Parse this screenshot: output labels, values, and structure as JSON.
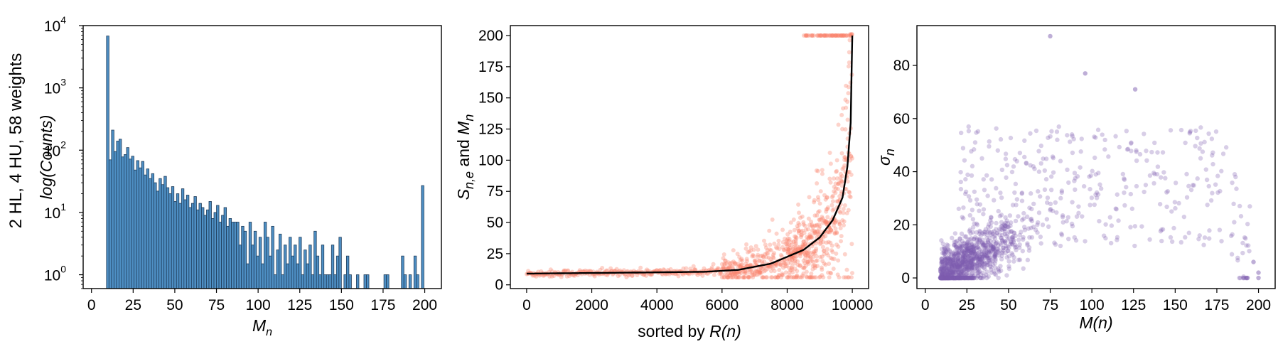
{
  "row_label": "2 HL, 4 HU, 58 weights",
  "colors": {
    "hist_fill": "#4e8fc4",
    "hist_edge": "#1f3c5a",
    "mid_scatter": "#fa8069",
    "mid_line": "#000000",
    "right_scatter": "#7e5db0"
  },
  "chart_data": [
    {
      "type": "bar",
      "title": "",
      "xlabel_base": "M",
      "xlabel_sub": "n",
      "ylabel_main": "log(",
      "ylabel_italic": "Counts",
      "ylabel_end": ")",
      "yscale": "log",
      "xlim": [
        -5,
        210
      ],
      "ylim": [
        0.6,
        10000
      ],
      "xticks": [
        "0",
        "25",
        "50",
        "75",
        "100",
        "125",
        "150",
        "175",
        "200"
      ],
      "yticks": [
        {
          "base": "10",
          "exp": "0",
          "v": 1
        },
        {
          "base": "10",
          "exp": "1",
          "v": 10
        },
        {
          "base": "10",
          "exp": "2",
          "v": 100
        },
        {
          "base": "10",
          "exp": "3",
          "v": 1000
        },
        {
          "base": "10",
          "exp": "4",
          "v": 10000
        }
      ],
      "bin_start": 9,
      "bin_width": 1.5,
      "counts": [
        6800,
        70,
        210,
        95,
        140,
        150,
        78,
        85,
        110,
        72,
        80,
        48,
        68,
        52,
        66,
        40,
        50,
        35,
        42,
        30,
        22,
        35,
        28,
        38,
        25,
        20,
        26,
        15,
        20,
        14,
        24,
        16,
        19,
        12,
        14,
        18,
        11,
        14,
        12,
        9,
        11,
        15,
        8,
        10,
        13,
        7,
        9,
        12,
        6,
        8,
        7,
        7,
        7,
        3,
        6,
        5,
        1.5,
        7,
        3,
        5,
        2,
        4,
        1.5,
        7,
        4,
        2,
        6,
        1,
        2.5,
        4.5,
        1,
        3,
        1.5,
        4,
        2,
        3,
        1.5,
        4,
        1,
        2.5,
        1.5,
        3,
        1,
        5,
        2,
        1,
        3,
        1,
        1,
        1,
        3,
        1,
        2,
        4,
        0,
        1,
        2,
        1,
        0,
        0,
        1,
        0,
        0,
        1,
        1,
        0,
        0,
        0,
        0,
        0,
        0,
        1,
        1,
        0,
        0,
        0,
        0,
        0,
        2,
        1,
        0,
        1,
        0,
        2,
        1,
        0,
        27
      ]
    },
    {
      "type": "scatter",
      "title": "",
      "xlabel_main": "sorted by ",
      "xlabel_italic": "R(n)",
      "ylabel_a": "S",
      "ylabel_a_sub": "n,e",
      "ylabel_mid": " and ",
      "ylabel_b": "M",
      "ylabel_b_sub": "n",
      "xlim": [
        -500,
        10500
      ],
      "ylim": [
        -3,
        208
      ],
      "xticks": [
        "0",
        "2000",
        "4000",
        "6000",
        "8000",
        "10000"
      ],
      "yticks": [
        "0",
        "25",
        "50",
        "75",
        "100",
        "125",
        "150",
        "175",
        "200"
      ],
      "line_curve": [
        [
          0,
          9
        ],
        [
          2000,
          9.5
        ],
        [
          4000,
          10
        ],
        [
          5500,
          10.5
        ],
        [
          6500,
          12
        ],
        [
          7500,
          17
        ],
        [
          8500,
          28
        ],
        [
          9000,
          38
        ],
        [
          9400,
          52
        ],
        [
          9700,
          70
        ],
        [
          9850,
          95
        ],
        [
          9950,
          130
        ],
        [
          10000,
          200
        ]
      ]
    },
    {
      "type": "scatter",
      "title": "",
      "xlabel": "M(n)",
      "ylabel_base": "σ",
      "ylabel_sub": "n",
      "xlim": [
        -5,
        210
      ],
      "ylim": [
        -4,
        95
      ],
      "xticks": [
        "0",
        "25",
        "50",
        "75",
        "100",
        "125",
        "150",
        "175",
        "200"
      ],
      "yticks": [
        "0",
        "20",
        "40",
        "60",
        "80"
      ]
    }
  ]
}
